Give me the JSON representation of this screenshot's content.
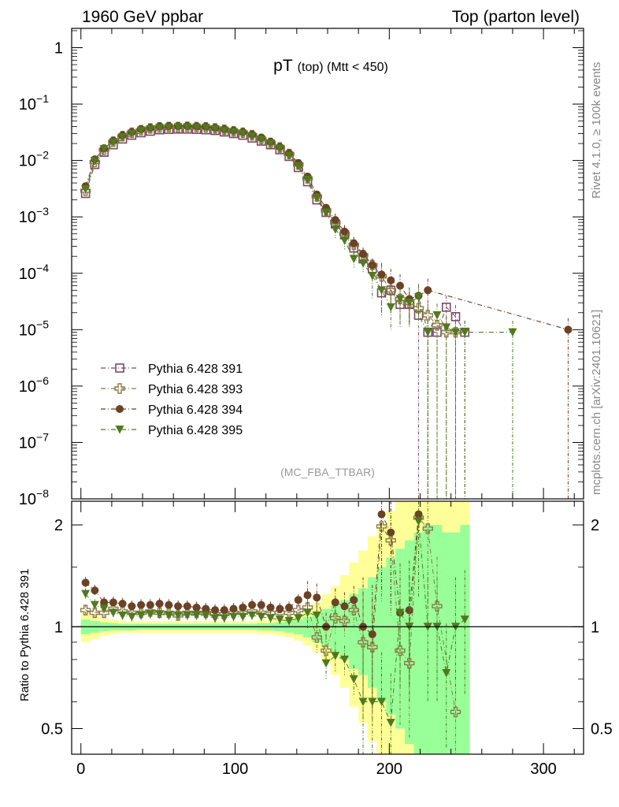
{
  "header": {
    "left": "1960 GeV ppbar",
    "right": "Top (parton level)"
  },
  "side_labels": {
    "rivet": "Rivet 4.1.0, ≥ 100k events",
    "mcplots": "mcplots.cern.ch [arXiv:2401.10621]"
  },
  "colors": {
    "p391": "#7b4a63",
    "p393": "#8c7a46",
    "p394": "#6b4226",
    "p395": "#4f7a1e",
    "band_green": "#99ff99",
    "band_yellow": "#ffff99"
  },
  "chart_data": [
    {
      "type": "scatter",
      "panel": "main",
      "title_main": "pT",
      "title_sub": "(top) (Mtt < 450)",
      "watermark": "(MC_FBA_TTBAR)",
      "yscale": "log",
      "xlim": [
        -6,
        326
      ],
      "ylim": [
        1e-08,
        2.2
      ],
      "yticks": [
        1,
        0.1,
        0.01,
        0.001,
        0.0001,
        1e-05,
        1e-06,
        1e-07,
        1e-08
      ],
      "ytick_labels": [
        {
          "base": "1",
          "exp": ""
        },
        {
          "base": "10",
          "exp": "−1"
        },
        {
          "base": "10",
          "exp": "−2"
        },
        {
          "base": "10",
          "exp": "−3"
        },
        {
          "base": "10",
          "exp": "−4"
        },
        {
          "base": "10",
          "exp": "−5"
        },
        {
          "base": "10",
          "exp": "−6"
        },
        {
          "base": "10",
          "exp": "−7"
        },
        {
          "base": "10",
          "exp": "−8"
        }
      ],
      "legend_position": "lower-left",
      "x": [
        3,
        9,
        15,
        21,
        27,
        33,
        39,
        45,
        51,
        57,
        63,
        69,
        75,
        81,
        87,
        93,
        99,
        105,
        111,
        117,
        123,
        129,
        135,
        141,
        147,
        153,
        159,
        165,
        171,
        177,
        183,
        189,
        195,
        201,
        207,
        213,
        219,
        225,
        231,
        237,
        243,
        249,
        280,
        316
      ],
      "series": [
        {
          "name": "Pythia 6.428 391",
          "marker": "open-square",
          "color_key": "p391",
          "values": [
            0.0026,
            0.0085,
            0.014,
            0.019,
            0.024,
            0.028,
            0.031,
            0.033,
            0.035,
            0.0355,
            0.036,
            0.036,
            0.0355,
            0.035,
            0.034,
            0.032,
            0.03,
            0.028,
            0.025,
            0.022,
            0.019,
            0.0155,
            0.0118,
            0.0075,
            0.0042,
            0.002,
            0.0012,
            0.00075,
            0.00048,
            0.00028,
            0.00018,
            0.00012,
            4.5e-05,
            5e-05,
            2.8e-05,
            2.8e-05,
            1.8e-05,
            9e-06,
            9e-06,
            2.5e-05,
            1.7e-05,
            9e-06,
            null,
            null
          ]
        },
        {
          "name": "Pythia 6.428 393",
          "marker": "open-cross",
          "color_key": "p393",
          "values": [
            0.0029,
            0.0094,
            0.0155,
            0.0215,
            0.027,
            0.031,
            0.0345,
            0.037,
            0.0385,
            0.039,
            0.039,
            0.0395,
            0.039,
            0.0385,
            0.037,
            0.035,
            0.033,
            0.031,
            0.028,
            0.024,
            0.0205,
            0.017,
            0.013,
            0.0085,
            0.0048,
            0.0023,
            0.0013,
            0.0008,
            0.0005,
            0.00032,
            0.00021,
            0.00014,
            8.8e-05,
            5e-05,
            3.5e-05,
            3e-05,
            2.4e-05,
            1.8e-05,
            1.2e-05,
            9e-06,
            9e-06,
            null,
            null,
            null
          ]
        },
        {
          "name": "Pythia 6.428 394",
          "marker": "filled-circle",
          "color_key": "p394",
          "values": [
            0.0035,
            0.0105,
            0.0165,
            0.0225,
            0.028,
            0.032,
            0.036,
            0.038,
            0.0405,
            0.041,
            0.041,
            0.041,
            0.0405,
            0.04,
            0.038,
            0.036,
            0.034,
            0.032,
            0.029,
            0.0255,
            0.0215,
            0.0175,
            0.0135,
            0.009,
            0.0052,
            0.0025,
            0.00145,
            0.00088,
            0.00055,
            0.00034,
            0.00022,
            0.00014,
            9.5e-05,
            7.5e-05,
            6e-05,
            3.5e-05,
            4e-05,
            5e-05,
            null,
            null,
            null,
            null,
            null,
            1e-05
          ]
        },
        {
          "name": "Pythia 6.428 395",
          "marker": "filled-triangle-down",
          "color_key": "p395",
          "values": [
            0.0031,
            0.0098,
            0.016,
            0.021,
            0.026,
            0.03,
            0.034,
            0.036,
            0.038,
            0.0385,
            0.039,
            0.039,
            0.0385,
            0.038,
            0.036,
            0.034,
            0.032,
            0.03,
            0.027,
            0.0235,
            0.02,
            0.0163,
            0.0123,
            0.008,
            0.0046,
            0.0022,
            0.0012,
            0.0006,
            0.00038,
            0.00018,
            0.00015,
            9e-05,
            5e-05,
            2.5e-05,
            3.5e-05,
            3e-05,
            3.8e-05,
            9e-06,
            1.8e-05,
            1.1e-05,
            9e-06,
            9e-06,
            9e-06,
            null
          ]
        }
      ]
    },
    {
      "type": "scatter",
      "panel": "ratio",
      "ylabel": "Ratio to Pythia 6.428 391",
      "yscale": "log",
      "xlim": [
        -6,
        326
      ],
      "ylim": [
        0.42,
        2.35
      ],
      "yticks": [
        0.5,
        1,
        2
      ],
      "ytick_labels": [
        "0.5",
        "1",
        "2"
      ],
      "xticks": [
        0,
        100,
        200,
        300
      ],
      "xtick_labels": [
        "0",
        "100",
        "200",
        "300"
      ],
      "reference_line": 1,
      "band_edges": [
        0,
        6,
        12,
        18,
        24,
        30,
        36,
        42,
        48,
        54,
        60,
        66,
        72,
        78,
        84,
        90,
        96,
        102,
        108,
        114,
        120,
        126,
        132,
        138,
        144,
        150,
        156,
        162,
        168,
        174,
        180,
        186,
        192,
        198,
        204,
        210,
        216,
        222,
        228,
        234,
        240,
        246,
        252
      ],
      "band_green": [
        [
          0.95,
          1.05
        ],
        [
          0.96,
          1.04
        ],
        [
          0.97,
          1.03
        ],
        [
          0.975,
          1.025
        ],
        [
          0.975,
          1.02
        ],
        [
          0.975,
          1.02
        ],
        [
          0.98,
          1.02
        ],
        [
          0.98,
          1.02
        ],
        [
          0.98,
          1.02
        ],
        [
          0.98,
          1.02
        ],
        [
          0.98,
          1.02
        ],
        [
          0.98,
          1.02
        ],
        [
          0.98,
          1.02
        ],
        [
          0.98,
          1.02
        ],
        [
          0.98,
          1.02
        ],
        [
          0.98,
          1.02
        ],
        [
          0.98,
          1.02
        ],
        [
          0.98,
          1.02
        ],
        [
          0.98,
          1.02
        ],
        [
          0.975,
          1.025
        ],
        [
          0.975,
          1.025
        ],
        [
          0.97,
          1.03
        ],
        [
          0.96,
          1.04
        ],
        [
          0.95,
          1.05
        ],
        [
          0.93,
          1.07
        ],
        [
          0.9,
          1.1
        ],
        [
          0.87,
          1.13
        ],
        [
          0.84,
          1.16
        ],
        [
          0.8,
          1.2
        ],
        [
          0.75,
          1.25
        ],
        [
          0.72,
          1.3
        ],
        [
          0.66,
          1.4
        ],
        [
          0.6,
          1.5
        ],
        [
          0.55,
          1.6
        ],
        [
          0.5,
          1.7
        ],
        [
          0.45,
          1.8
        ],
        [
          0.42,
          1.9
        ],
        [
          0.42,
          2.0
        ],
        [
          0.42,
          2.0
        ],
        [
          0.42,
          1.9
        ],
        [
          0.42,
          1.9
        ],
        [
          0.42,
          2.0
        ]
      ],
      "band_yellow": [
        [
          0.9,
          1.1
        ],
        [
          0.92,
          1.08
        ],
        [
          0.94,
          1.06
        ],
        [
          0.95,
          1.05
        ],
        [
          0.96,
          1.04
        ],
        [
          0.96,
          1.04
        ],
        [
          0.96,
          1.04
        ],
        [
          0.96,
          1.04
        ],
        [
          0.96,
          1.04
        ],
        [
          0.96,
          1.04
        ],
        [
          0.96,
          1.04
        ],
        [
          0.96,
          1.04
        ],
        [
          0.96,
          1.04
        ],
        [
          0.96,
          1.04
        ],
        [
          0.96,
          1.04
        ],
        [
          0.96,
          1.04
        ],
        [
          0.96,
          1.04
        ],
        [
          0.96,
          1.04
        ],
        [
          0.96,
          1.04
        ],
        [
          0.95,
          1.05
        ],
        [
          0.95,
          1.05
        ],
        [
          0.94,
          1.06
        ],
        [
          0.93,
          1.07
        ],
        [
          0.91,
          1.09
        ],
        [
          0.88,
          1.13
        ],
        [
          0.84,
          1.18
        ],
        [
          0.78,
          1.25
        ],
        [
          0.72,
          1.32
        ],
        [
          0.66,
          1.42
        ],
        [
          0.58,
          1.55
        ],
        [
          0.52,
          1.68
        ],
        [
          0.46,
          1.85
        ],
        [
          0.42,
          2.0
        ],
        [
          0.42,
          2.2
        ],
        [
          0.42,
          2.35
        ],
        [
          0.42,
          2.35
        ],
        [
          0.42,
          2.35
        ],
        [
          0.42,
          2.35
        ],
        [
          0.42,
          2.35
        ],
        [
          0.42,
          2.35
        ],
        [
          0.42,
          2.35
        ],
        [
          0.42,
          2.35
        ]
      ],
      "x": [
        3,
        9,
        15,
        21,
        27,
        33,
        39,
        45,
        51,
        57,
        63,
        69,
        75,
        81,
        87,
        93,
        99,
        105,
        111,
        117,
        123,
        129,
        135,
        141,
        147,
        153,
        159,
        165,
        171,
        177,
        183,
        189,
        195,
        201,
        207,
        213,
        219,
        225,
        231,
        237,
        243,
        249
      ],
      "series": [
        {
          "name": "Pythia 6.428 393",
          "marker": "open-cross",
          "color_key": "p393",
          "values": [
            1.12,
            1.1,
            1.1,
            1.13,
            1.11,
            1.1,
            1.1,
            1.11,
            1.1,
            1.1,
            1.08,
            1.1,
            1.1,
            1.1,
            1.09,
            1.09,
            1.1,
            1.1,
            1.11,
            1.1,
            1.1,
            1.1,
            1.1,
            1.12,
            1.14,
            0.93,
            0.85,
            1.06,
            1.04,
            1.12,
            0.9,
            0.87,
            1.98,
            1.8,
            0.85,
            0.78,
            2.1,
            1.95,
            1.15,
            null,
            0.56,
            null
          ]
        },
        {
          "name": "Pythia 6.428 394",
          "marker": "filled-circle",
          "color_key": "p394",
          "values": [
            1.35,
            1.28,
            1.18,
            1.18,
            1.17,
            1.15,
            1.16,
            1.16,
            1.17,
            1.16,
            1.15,
            1.15,
            1.14,
            1.13,
            1.12,
            1.12,
            1.13,
            1.14,
            1.16,
            1.16,
            1.14,
            1.13,
            1.14,
            1.2,
            1.24,
            1.22,
            1.0,
            1.18,
            1.15,
            1.2,
            1.0,
            0.95,
            2.15,
            1.9,
            1.1,
            1.12,
            2.15,
            null,
            null,
            null,
            null,
            null
          ]
        },
        {
          "name": "Pythia 6.428 395",
          "marker": "filled-triangle-down",
          "color_key": "p395",
          "values": [
            1.25,
            1.16,
            1.13,
            1.1,
            1.08,
            1.07,
            1.08,
            1.09,
            1.09,
            1.08,
            1.08,
            1.08,
            1.08,
            1.08,
            1.06,
            1.06,
            1.07,
            1.07,
            1.08,
            1.07,
            1.06,
            1.05,
            1.04,
            1.06,
            1.1,
            1.08,
            0.78,
            0.82,
            0.8,
            0.7,
            0.6,
            0.6,
            0.6,
            0.52,
            1.1,
            1.0,
            2.05,
            1.0,
            1.0,
            0.73,
            1.0,
            1.05
          ]
        }
      ]
    }
  ]
}
